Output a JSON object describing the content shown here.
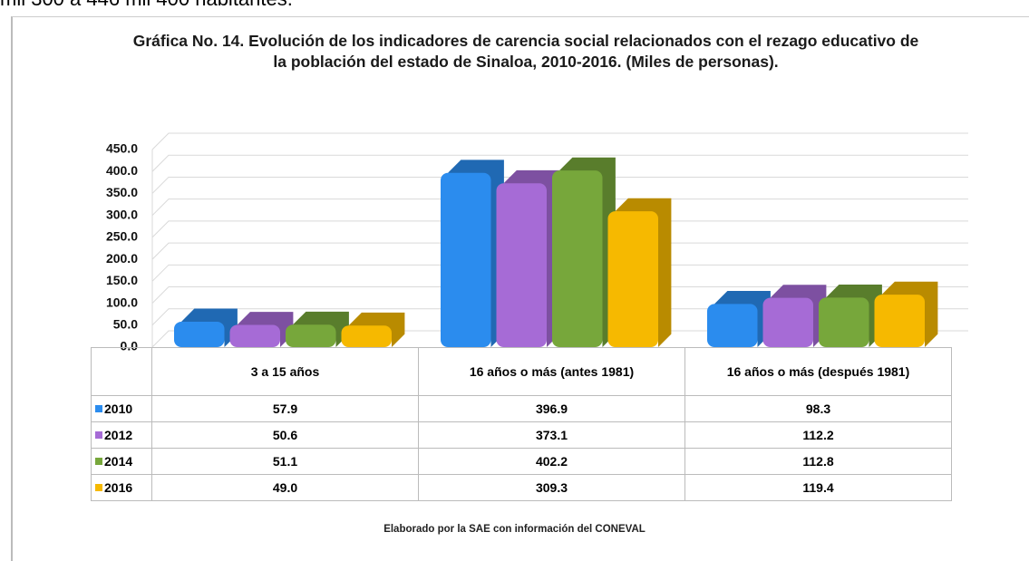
{
  "page_header": "mil 300 a 446 mil 400 habitantes.",
  "chart_data": {
    "type": "bar",
    "title": "Gráfica No. 14. Evolución de los indicadores de carencia social relacionados con el rezago educativo de la población del estado de Sinaloa, 2010-2016. (Miles de personas).",
    "categories": [
      "3 a 15 años",
      "16 años o más (antes 1981)",
      "16 años o más (después 1981)"
    ],
    "series": [
      {
        "name": "2010",
        "color": "#2b8cee",
        "values": [
          57.9,
          396.9,
          98.3
        ],
        "value_labels": [
          "57.9",
          "396.9",
          "98.3"
        ]
      },
      {
        "name": "2012",
        "color": "#a66bd6",
        "values": [
          50.6,
          373.1,
          112.2
        ],
        "value_labels": [
          "50.6",
          "373.1",
          "112.2"
        ]
      },
      {
        "name": "2014",
        "color": "#77a73b",
        "values": [
          51.1,
          402.2,
          112.8
        ],
        "value_labels": [
          "51.1",
          "402.2",
          "112.8"
        ]
      },
      {
        "name": "2016",
        "color": "#f6b900",
        "values": [
          49,
          309.3,
          119.4
        ],
        "value_labels": [
          "49.0",
          "309.3",
          "119.4"
        ]
      }
    ],
    "ylim": [
      0,
      450
    ],
    "yticks": [
      {
        "value": 0,
        "label": "0.0"
      },
      {
        "value": 50,
        "label": "50.0"
      },
      {
        "value": 100,
        "label": "100.0"
      },
      {
        "value": 150,
        "label": "150.0"
      },
      {
        "value": 200,
        "label": "200.0"
      },
      {
        "value": 250,
        "label": "250.0"
      },
      {
        "value": 300,
        "label": "300.0"
      },
      {
        "value": 350,
        "label": "350.0"
      },
      {
        "value": 400,
        "label": "400.0"
      },
      {
        "value": 450,
        "label": "450.0"
      }
    ],
    "grid": true,
    "source": "Elaborado por la SAE con información del CONEVAL"
  }
}
